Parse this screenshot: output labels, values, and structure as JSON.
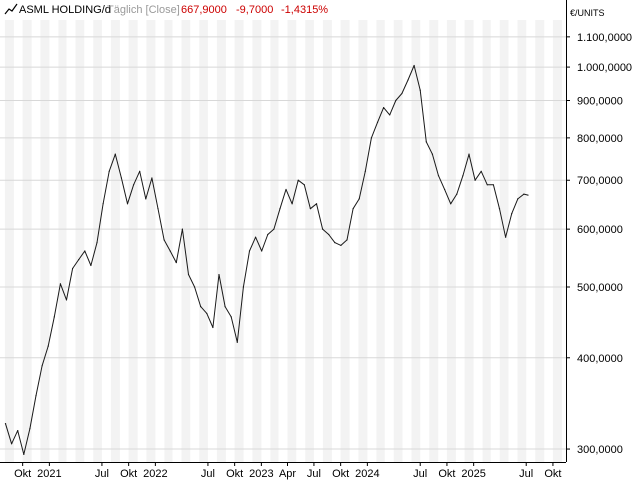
{
  "header": {
    "instrument": "ASML HOLDING/d",
    "interval": "Täglich [Close]",
    "last": "667,9000",
    "change": "-9,7000",
    "change_pct": "-1,4315%",
    "unit": "€/UNITS",
    "colors": {
      "label": "#000000",
      "muted": "#9a9a9a",
      "negative": "#cc0000"
    }
  },
  "chart_data": {
    "type": "line",
    "title": "ASML HOLDING/d",
    "series": [
      {
        "name": "ASML HOLDING/d",
        "x": [
          "2020-08-03",
          "2020-08-24",
          "2020-09-14",
          "2020-10-05",
          "2020-10-26",
          "2020-11-16",
          "2020-12-07",
          "2020-12-28",
          "2021-01-18",
          "2021-02-08",
          "2021-03-01",
          "2021-03-22",
          "2021-04-12",
          "2021-05-03",
          "2021-05-24",
          "2021-06-14",
          "2021-07-05",
          "2021-07-26",
          "2021-08-16",
          "2021-09-06",
          "2021-09-27",
          "2021-10-18",
          "2021-11-08",
          "2021-11-29",
          "2021-12-20",
          "2022-01-10",
          "2022-01-31",
          "2022-02-21",
          "2022-03-14",
          "2022-04-04",
          "2022-04-25",
          "2022-05-16",
          "2022-06-06",
          "2022-06-27",
          "2022-07-18",
          "2022-08-08",
          "2022-08-29",
          "2022-09-19",
          "2022-10-10",
          "2022-10-31",
          "2022-11-21",
          "2022-12-12",
          "2023-01-02",
          "2023-01-23",
          "2023-02-13",
          "2023-03-06",
          "2023-03-27",
          "2023-04-17",
          "2023-05-08",
          "2023-05-29",
          "2023-06-19",
          "2023-07-10",
          "2023-07-31",
          "2023-08-21",
          "2023-09-11",
          "2023-10-02",
          "2023-10-23",
          "2023-11-13",
          "2023-12-04",
          "2023-12-25",
          "2024-01-15",
          "2024-02-05",
          "2024-02-26",
          "2024-03-18",
          "2024-04-08",
          "2024-04-29",
          "2024-05-20",
          "2024-06-10",
          "2024-07-01",
          "2024-07-22",
          "2024-08-12",
          "2024-09-02",
          "2024-09-23",
          "2024-10-14",
          "2024-11-04",
          "2024-11-25",
          "2024-12-16",
          "2025-01-06",
          "2025-01-27",
          "2025-02-17",
          "2025-03-10",
          "2025-03-31",
          "2025-04-21",
          "2025-05-12",
          "2025-06-02",
          "2025-06-23",
          "2025-07-07"
        ],
        "values": [
          325,
          305,
          318,
          295,
          320,
          355,
          390,
          415,
          455,
          505,
          480,
          530,
          545,
          560,
          535,
          575,
          650,
          720,
          760,
          705,
          650,
          690,
          720,
          660,
          705,
          640,
          580,
          560,
          540,
          600,
          520,
          500,
          470,
          460,
          440,
          520,
          470,
          455,
          420,
          500,
          560,
          585,
          560,
          590,
          600,
          640,
          680,
          650,
          700,
          690,
          640,
          650,
          600,
          590,
          575,
          570,
          580,
          640,
          660,
          720,
          800,
          840,
          880,
          860,
          900,
          920,
          960,
          1005,
          930,
          790,
          760,
          710,
          680,
          650,
          670,
          710,
          760,
          700,
          720,
          690,
          690,
          640,
          585,
          630,
          660,
          670,
          668
        ]
      }
    ],
    "x_ticks": [
      "Okt",
      "2021",
      "Jul",
      "Okt",
      "2022",
      "Jul",
      "Okt",
      "2023",
      "Apr",
      "Jul",
      "Okt",
      "2024",
      "Jul",
      "Okt",
      "2025",
      "Jul",
      "Okt"
    ],
    "y_ticks": [
      "1.100,0000",
      "1.000,0000",
      "900,0000",
      "800,0000",
      "700,0000",
      "600,0000",
      "500,0000",
      "400,0000",
      "300,0000"
    ],
    "y_tick_values": [
      1100,
      1000,
      900,
      800,
      700,
      600,
      500,
      400,
      300
    ],
    "y_scale": "log",
    "ylim": [
      288,
      1160
    ],
    "xlim": [
      "2020-07-15",
      "2025-11-15"
    ],
    "grid": true,
    "colors": {
      "line": "#1a1a1a",
      "band": "#f3f3f3",
      "grid": "#d8d8d8"
    }
  }
}
